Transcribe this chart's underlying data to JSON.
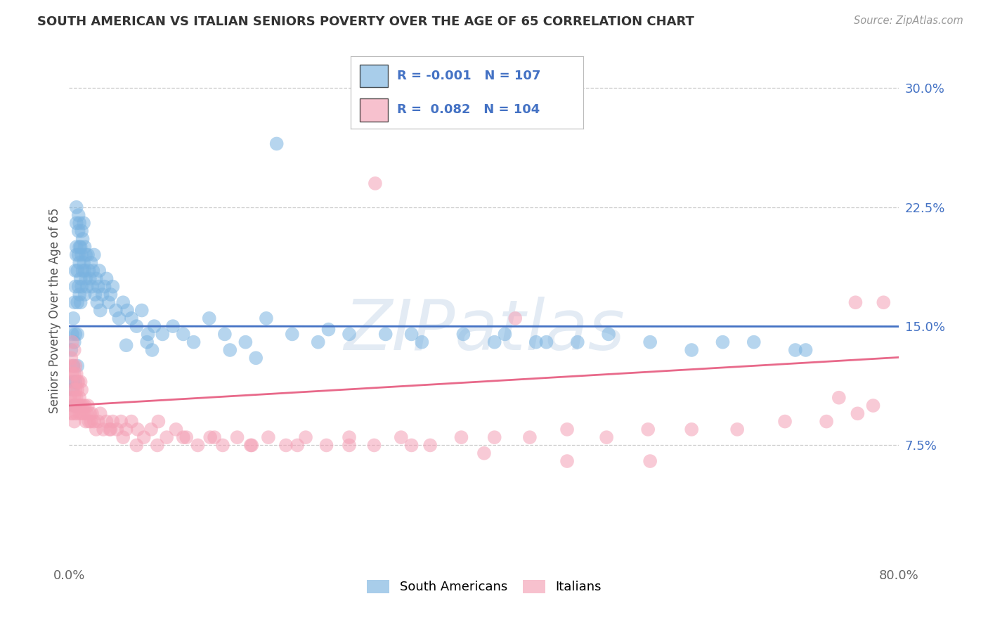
{
  "title": "SOUTH AMERICAN VS ITALIAN SENIORS POVERTY OVER THE AGE OF 65 CORRELATION CHART",
  "source": "Source: ZipAtlas.com",
  "ylabel": "Seniors Poverty Over the Age of 65",
  "xlim": [
    0.0,
    0.8
  ],
  "ylim": [
    0.0,
    0.32
  ],
  "yticks": [
    0.075,
    0.15,
    0.225,
    0.3
  ],
  "yticklabels": [
    "7.5%",
    "15.0%",
    "22.5%",
    "30.0%"
  ],
  "xtick_positions": [
    0.0,
    0.8
  ],
  "xtick_labels": [
    "0.0%",
    "80.0%"
  ],
  "grid_color": "#cccccc",
  "background_color": "#ffffff",
  "blue_color": "#7ab3e0",
  "pink_color": "#f4a0b5",
  "blue_line_color": "#4472c4",
  "pink_line_color": "#e8698a",
  "legend_R_blue": "-0.001",
  "legend_N_blue": "107",
  "legend_R_pink": "0.082",
  "legend_N_pink": "104",
  "legend_label_blue": "South Americans",
  "legend_label_pink": "Italians",
  "watermark": "ZIPatlas",
  "blue_intercept": 0.15,
  "blue_slope": -0.0002,
  "pink_intercept": 0.1,
  "pink_slope": 0.038,
  "blue_scatter_x": [
    0.002,
    0.003,
    0.003,
    0.004,
    0.004,
    0.004,
    0.005,
    0.005,
    0.005,
    0.006,
    0.006,
    0.006,
    0.006,
    0.007,
    0.007,
    0.007,
    0.007,
    0.008,
    0.008,
    0.008,
    0.008,
    0.009,
    0.009,
    0.009,
    0.009,
    0.01,
    0.01,
    0.01,
    0.01,
    0.011,
    0.011,
    0.011,
    0.012,
    0.012,
    0.012,
    0.013,
    0.013,
    0.014,
    0.014,
    0.015,
    0.015,
    0.015,
    0.016,
    0.016,
    0.017,
    0.018,
    0.019,
    0.02,
    0.021,
    0.022,
    0.023,
    0.024,
    0.025,
    0.026,
    0.027,
    0.028,
    0.029,
    0.03,
    0.032,
    0.034,
    0.036,
    0.038,
    0.04,
    0.042,
    0.045,
    0.048,
    0.052,
    0.056,
    0.06,
    0.065,
    0.07,
    0.076,
    0.082,
    0.09,
    0.1,
    0.11,
    0.12,
    0.135,
    0.15,
    0.17,
    0.19,
    0.215,
    0.24,
    0.27,
    0.305,
    0.34,
    0.38,
    0.42,
    0.46,
    0.49,
    0.52,
    0.56,
    0.6,
    0.63,
    0.66,
    0.7,
    0.71,
    0.45,
    0.25,
    0.08,
    0.055,
    0.2,
    0.33,
    0.155,
    0.18,
    0.41,
    0.075
  ],
  "blue_scatter_y": [
    0.135,
    0.145,
    0.11,
    0.125,
    0.115,
    0.155,
    0.1,
    0.14,
    0.165,
    0.175,
    0.185,
    0.145,
    0.115,
    0.195,
    0.215,
    0.225,
    0.2,
    0.185,
    0.165,
    0.145,
    0.125,
    0.21,
    0.195,
    0.175,
    0.22,
    0.2,
    0.215,
    0.19,
    0.17,
    0.18,
    0.2,
    0.165,
    0.175,
    0.195,
    0.21,
    0.185,
    0.205,
    0.215,
    0.19,
    0.2,
    0.185,
    0.17,
    0.195,
    0.18,
    0.175,
    0.195,
    0.185,
    0.18,
    0.19,
    0.175,
    0.185,
    0.195,
    0.17,
    0.18,
    0.165,
    0.175,
    0.185,
    0.16,
    0.17,
    0.175,
    0.18,
    0.165,
    0.17,
    0.175,
    0.16,
    0.155,
    0.165,
    0.16,
    0.155,
    0.15,
    0.16,
    0.145,
    0.15,
    0.145,
    0.15,
    0.145,
    0.14,
    0.155,
    0.145,
    0.14,
    0.155,
    0.145,
    0.14,
    0.145,
    0.145,
    0.14,
    0.145,
    0.145,
    0.14,
    0.14,
    0.145,
    0.14,
    0.135,
    0.14,
    0.14,
    0.135,
    0.135,
    0.14,
    0.148,
    0.135,
    0.138,
    0.265,
    0.145,
    0.135,
    0.13,
    0.14,
    0.14
  ],
  "pink_scatter_x": [
    0.001,
    0.001,
    0.002,
    0.002,
    0.002,
    0.003,
    0.003,
    0.003,
    0.004,
    0.004,
    0.004,
    0.005,
    0.005,
    0.005,
    0.005,
    0.006,
    0.006,
    0.006,
    0.007,
    0.007,
    0.007,
    0.008,
    0.008,
    0.008,
    0.009,
    0.009,
    0.01,
    0.01,
    0.011,
    0.011,
    0.012,
    0.012,
    0.013,
    0.014,
    0.015,
    0.016,
    0.017,
    0.018,
    0.019,
    0.02,
    0.021,
    0.022,
    0.024,
    0.026,
    0.028,
    0.03,
    0.033,
    0.036,
    0.039,
    0.042,
    0.046,
    0.05,
    0.055,
    0.06,
    0.066,
    0.072,
    0.079,
    0.086,
    0.094,
    0.103,
    0.113,
    0.124,
    0.136,
    0.148,
    0.162,
    0.176,
    0.192,
    0.209,
    0.228,
    0.248,
    0.27,
    0.294,
    0.32,
    0.348,
    0.378,
    0.41,
    0.444,
    0.48,
    0.518,
    0.558,
    0.6,
    0.644,
    0.69,
    0.73,
    0.76,
    0.775,
    0.785,
    0.758,
    0.742,
    0.04,
    0.052,
    0.065,
    0.085,
    0.11,
    0.14,
    0.175,
    0.22,
    0.27,
    0.33,
    0.4,
    0.48,
    0.56,
    0.43,
    0.295
  ],
  "pink_scatter_y": [
    0.125,
    0.105,
    0.115,
    0.095,
    0.13,
    0.1,
    0.12,
    0.14,
    0.11,
    0.125,
    0.095,
    0.105,
    0.12,
    0.135,
    0.09,
    0.11,
    0.125,
    0.1,
    0.105,
    0.12,
    0.095,
    0.11,
    0.1,
    0.115,
    0.1,
    0.115,
    0.105,
    0.095,
    0.1,
    0.115,
    0.095,
    0.11,
    0.1,
    0.095,
    0.1,
    0.09,
    0.095,
    0.1,
    0.09,
    0.095,
    0.09,
    0.095,
    0.09,
    0.085,
    0.09,
    0.095,
    0.085,
    0.09,
    0.085,
    0.09,
    0.085,
    0.09,
    0.085,
    0.09,
    0.085,
    0.08,
    0.085,
    0.09,
    0.08,
    0.085,
    0.08,
    0.075,
    0.08,
    0.075,
    0.08,
    0.075,
    0.08,
    0.075,
    0.08,
    0.075,
    0.075,
    0.075,
    0.08,
    0.075,
    0.08,
    0.08,
    0.08,
    0.085,
    0.08,
    0.085,
    0.085,
    0.085,
    0.09,
    0.09,
    0.095,
    0.1,
    0.165,
    0.165,
    0.105,
    0.085,
    0.08,
    0.075,
    0.075,
    0.08,
    0.08,
    0.075,
    0.075,
    0.08,
    0.075,
    0.07,
    0.065,
    0.065,
    0.155,
    0.24
  ]
}
